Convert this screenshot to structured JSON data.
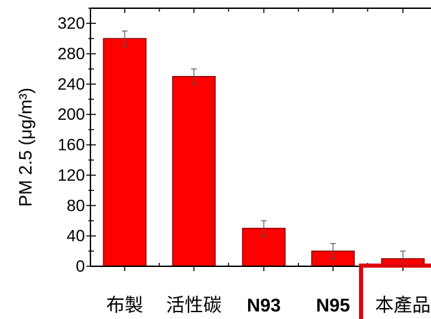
{
  "chart_data": {
    "type": "bar",
    "categories": [
      "布製",
      "活性碳",
      "N93",
      "N95",
      "本產品"
    ],
    "values": [
      300,
      250,
      50,
      20,
      10
    ],
    "errors": [
      10,
      10,
      10,
      10,
      10
    ],
    "ylabel": "PM 2.5 (μg/m³)",
    "xlabel": "",
    "title": "",
    "ylim": [
      0,
      340
    ],
    "yticks": [
      0,
      40,
      80,
      120,
      160,
      200,
      240,
      280,
      320
    ],
    "grid": false,
    "colors": {
      "bar_fill": "#ff0000",
      "bar_stroke": "#8b0000",
      "highlight_box": "#e0000f",
      "axis": "#000000"
    },
    "highlight_category": "本產品"
  }
}
